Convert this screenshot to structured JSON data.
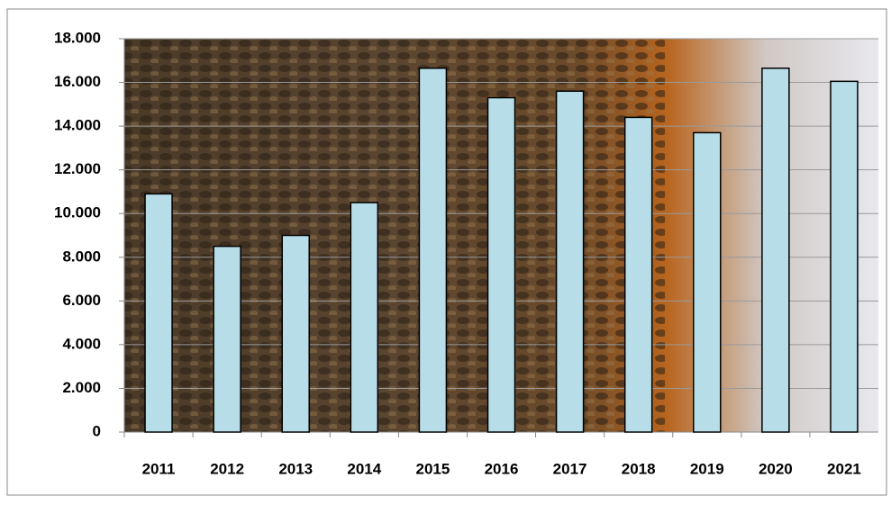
{
  "chart_data": {
    "type": "bar",
    "categories": [
      "2011",
      "2012",
      "2013",
      "2014",
      "2015",
      "2016",
      "2017",
      "2018",
      "2019",
      "2020",
      "2021"
    ],
    "values": [
      10900,
      8500,
      9000,
      10500,
      16650,
      15300,
      15600,
      14400,
      13700,
      16650,
      16050
    ],
    "color": "#b7dde8",
    "ylim": [
      0,
      18000
    ],
    "yticks": [
      0,
      {
        "value": 2000,
        "label": "2.000"
      },
      {
        "value": 4000,
        "label": "4.000"
      },
      {
        "value": 6000,
        "label": "6.000"
      },
      {
        "value": 8000,
        "label": "8.000"
      },
      {
        "value": 10000,
        "label": "10.000"
      },
      {
        "value": 12000,
        "label": "12.000"
      },
      {
        "value": 14000,
        "label": "14.000"
      },
      {
        "value": 16000,
        "label": "16.000"
      },
      {
        "value": 18000,
        "label": "18.000"
      }
    ],
    "grid": true
  }
}
